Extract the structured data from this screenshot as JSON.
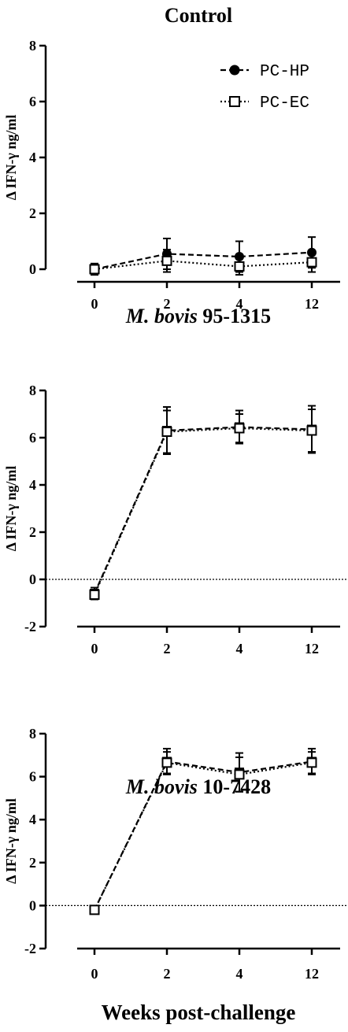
{
  "x_axis_title": "Weeks post-challenge",
  "chart_data": [
    {
      "type": "line",
      "title": "Control",
      "title_italic": "",
      "ylabel": "Δ IFN-γ ng/ml",
      "categories": [
        "0",
        "2",
        "4",
        "12"
      ],
      "ylim": [
        0,
        8
      ],
      "yticks": [
        0,
        2,
        4,
        6,
        8
      ],
      "zero_line": false,
      "legend_position": "top-right",
      "series": [
        {
          "name": "PC-HP",
          "marker": "filled-circle",
          "line": "dashed",
          "values": [
            0.0,
            0.55,
            0.45,
            0.6
          ],
          "errors": [
            0.2,
            0.55,
            0.55,
            0.55
          ]
        },
        {
          "name": "PC-EC",
          "marker": "open-square",
          "line": "dotted",
          "values": [
            0.0,
            0.3,
            0.1,
            0.25
          ],
          "errors": [
            0.2,
            0.4,
            0.3,
            0.35
          ]
        }
      ]
    },
    {
      "type": "line",
      "title": "95-1315",
      "title_italic": "M. bovis",
      "ylabel": "Δ IFN-γ ng/ml",
      "categories": [
        "0",
        "2",
        "4",
        "12"
      ],
      "ylim": [
        -2,
        8
      ],
      "yticks": [
        -2,
        0,
        2,
        4,
        6,
        8
      ],
      "zero_line": true,
      "legend_position": "none",
      "series": [
        {
          "name": "",
          "marker": "filled-square",
          "line": "dashed",
          "values": [
            -0.6,
            6.3,
            6.45,
            6.35
          ],
          "errors": [
            0.25,
            1.0,
            0.7,
            1.0
          ]
        },
        {
          "name": "",
          "marker": "open-square",
          "line": "dotted",
          "values": [
            -0.65,
            6.25,
            6.4,
            6.3
          ],
          "errors": [
            0.2,
            0.9,
            0.6,
            0.9
          ]
        }
      ]
    },
    {
      "type": "line",
      "title": "10-7428",
      "title_italic": "M. bovis",
      "ylabel": "Δ IFN-γ ng/ml",
      "categories": [
        "0",
        "2",
        "4",
        "12"
      ],
      "ylim": [
        -2,
        8
      ],
      "yticks": [
        -2,
        0,
        2,
        4,
        6,
        8
      ],
      "zero_line": true,
      "legend_position": "none",
      "series": [
        {
          "name": "",
          "marker": "filled-square",
          "line": "dashed",
          "values": [
            -0.2,
            6.7,
            6.2,
            6.7
          ],
          "errors": [
            0.1,
            0.6,
            0.9,
            0.6
          ]
        },
        {
          "name": "",
          "marker": "open-square",
          "line": "dotted",
          "values": [
            -0.2,
            6.65,
            6.1,
            6.65
          ],
          "errors": [
            0.1,
            0.5,
            0.8,
            0.5
          ]
        }
      ]
    }
  ]
}
